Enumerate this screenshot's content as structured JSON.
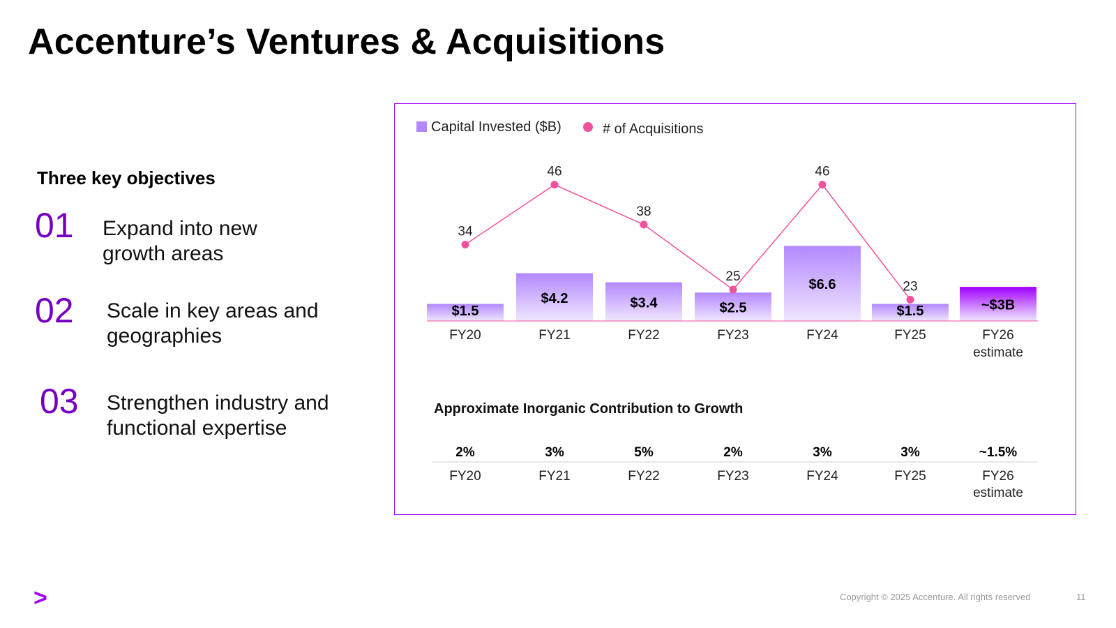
{
  "slide": {
    "title": "Accenture’s Ventures & Acquisitions",
    "objectives_heading": "Three key objectives",
    "objectives": [
      {
        "number": "01",
        "lines": [
          "Expand into new",
          "growth areas"
        ]
      },
      {
        "number": "02",
        "lines": [
          "Scale in key areas and",
          "geographies"
        ]
      },
      {
        "number": "03",
        "lines": [
          "Strengthen industry and",
          "functional expertise"
        ]
      }
    ],
    "footer": {
      "logo_glyph": ">",
      "copyright": "Copyright © 2025 Accenture. All rights reserved",
      "page_number": "11"
    }
  },
  "chart_data": [
    {
      "type": "bar",
      "categories": [
        [
          "FY20"
        ],
        [
          "FY21"
        ],
        [
          "FY22"
        ],
        [
          "FY23"
        ],
        [
          "FY24"
        ],
        [
          "FY25"
        ],
        [
          "FY26",
          "estimate"
        ]
      ],
      "series": [
        {
          "name": "Capital Invested ($B)",
          "type": "bar",
          "values": [
            1.5,
            4.2,
            3.4,
            2.5,
            6.6,
            1.5,
            3
          ],
          "labels": [
            "$1.5",
            "$4.2",
            "$3.4",
            "$2.5",
            "$6.6",
            "$1.5",
            "~$3B"
          ],
          "color": "#b388ff",
          "estimate_color": "#a100ff"
        },
        {
          "name": "# of Acquisitions",
          "type": "line",
          "values": [
            34,
            46,
            38,
            25,
            46,
            23,
            null
          ],
          "labels": [
            "34",
            "46",
            "38",
            "25",
            "46",
            "23",
            ""
          ],
          "color": "#f0519c"
        }
      ],
      "legend": "top-left"
    },
    {
      "type": "table",
      "title": "Approximate Inorganic Contribution to Growth",
      "categories": [
        [
          "FY20"
        ],
        [
          "FY21"
        ],
        [
          "FY22"
        ],
        [
          "FY23"
        ],
        [
          "FY24"
        ],
        [
          "FY25"
        ],
        [
          "FY26",
          "estimate"
        ]
      ],
      "values": [
        2,
        3,
        5,
        2,
        3,
        3,
        1.5
      ],
      "labels": [
        "2%",
        "3%",
        "5%",
        "2%",
        "3%",
        "3%",
        "~1.5%"
      ]
    }
  ]
}
